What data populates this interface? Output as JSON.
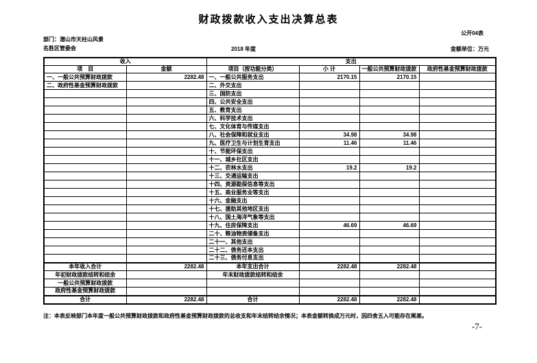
{
  "page": {
    "title": "财政拨款收入支出决算总表",
    "table_code": "公开04表",
    "department_line1": "部门：潜山市天柱山风景",
    "department_line2": "名胜区管委会",
    "year": "2018 年度",
    "unit": "金额单位：万元",
    "note": "注：本表反映部门本年度一般公共预算财政拨款和政府性基金预算财政拨款的总收支和年末结转结余情况；本表金额转换成万元时，因四舍五入可能存在尾差。",
    "page_number": "-7-"
  },
  "table": {
    "group_headers": {
      "income": "收入",
      "expense": "支出"
    },
    "columns": [
      "项　目",
      "金额",
      "项目（按功能分类）",
      "小 计",
      "一般公共预算财政拨款",
      "政府性基金预算财政拨款"
    ],
    "rows": [
      {
        "income_item": "一、一般公共预算财政拨款",
        "income_amount": "2282.48",
        "expense_item": "一、一般公共服务支出",
        "subtotal": "2170.15",
        "general": "2170.15",
        "fund": "",
        "style": ""
      },
      {
        "income_item": "二、政府性基金预算财政拨款",
        "income_amount": "",
        "expense_item": "二、外交支出",
        "subtotal": "",
        "general": "",
        "fund": "",
        "style": ""
      },
      {
        "income_item": "",
        "income_amount": "",
        "expense_item": "三、国防支出",
        "subtotal": "",
        "general": "",
        "fund": "",
        "style": ""
      },
      {
        "income_item": "",
        "income_amount": "",
        "expense_item": "四、公共安全支出",
        "subtotal": "",
        "general": "",
        "fund": "",
        "style": ""
      },
      {
        "income_item": "",
        "income_amount": "",
        "expense_item": "五、教育支出",
        "subtotal": "",
        "general": "",
        "fund": "",
        "style": ""
      },
      {
        "income_item": "",
        "income_amount": "",
        "expense_item": "六、科学技术支出",
        "subtotal": "",
        "general": "",
        "fund": "",
        "style": ""
      },
      {
        "income_item": "",
        "income_amount": "",
        "expense_item": "七、文化体育与传媒支出",
        "subtotal": "",
        "general": "",
        "fund": "",
        "style": ""
      },
      {
        "income_item": "",
        "income_amount": "",
        "expense_item": "八、社会保障和就业支出",
        "subtotal": "34.98",
        "general": "34.98",
        "fund": "",
        "style": ""
      },
      {
        "income_item": "",
        "income_amount": "",
        "expense_item": "九、医疗卫生与计划生育支出",
        "subtotal": "11.46",
        "general": "11.46",
        "fund": "",
        "style": ""
      },
      {
        "income_item": "",
        "income_amount": "",
        "expense_item": "十、节能环保支出",
        "subtotal": "",
        "general": "",
        "fund": "",
        "style": ""
      },
      {
        "income_item": "",
        "income_amount": "",
        "expense_item": "十一、城乡社区支出",
        "subtotal": "",
        "general": "",
        "fund": "",
        "style": ""
      },
      {
        "income_item": "",
        "income_amount": "",
        "expense_item": "十二、农林水支出",
        "subtotal": "19.2",
        "general": "19.2",
        "fund": "",
        "style": ""
      },
      {
        "income_item": "",
        "income_amount": "",
        "expense_item": "十三、交通运输支出",
        "subtotal": "",
        "general": "",
        "fund": "",
        "style": ""
      },
      {
        "income_item": "",
        "income_amount": "",
        "expense_item": "十四、资源勘探信息等支出",
        "subtotal": "",
        "general": "",
        "fund": "",
        "style": ""
      },
      {
        "income_item": "",
        "income_amount": "",
        "expense_item": "十五、商业服务业等支出",
        "subtotal": "",
        "general": "",
        "fund": "",
        "style": ""
      },
      {
        "income_item": "",
        "income_amount": "",
        "expense_item": "十六、金融支出",
        "subtotal": "",
        "general": "",
        "fund": "",
        "style": ""
      },
      {
        "income_item": "",
        "income_amount": "",
        "expense_item": "十七、援助其他地区支出",
        "subtotal": "",
        "general": "",
        "fund": "",
        "style": ""
      },
      {
        "income_item": "",
        "income_amount": "",
        "expense_item": "十八、国土海洋气象等支出",
        "subtotal": "",
        "general": "",
        "fund": "",
        "style": ""
      },
      {
        "income_item": "",
        "income_amount": "",
        "expense_item": "十九、住房保障支出",
        "subtotal": "46.69",
        "general": "46.69",
        "fund": "",
        "style": ""
      },
      {
        "income_item": "",
        "income_amount": "",
        "expense_item": "二十、粮油物资储备支出",
        "subtotal": "",
        "general": "",
        "fund": "",
        "style": ""
      },
      {
        "income_item": "",
        "income_amount": "",
        "expense_item": "二十一、其他支出",
        "subtotal": "",
        "general": "",
        "fund": "",
        "style": ""
      },
      {
        "income_item": "",
        "income_amount": "",
        "expense_item": "二十二、债务还本支出",
        "subtotal": "",
        "general": "",
        "fund": "",
        "style": ""
      },
      {
        "income_item": "",
        "income_amount": "",
        "expense_item": "二十三、债务付息支出",
        "subtotal": "",
        "general": "",
        "fund": "",
        "style": ""
      },
      {
        "income_item": "本年收入合计",
        "income_amount": "2282.48",
        "expense_item": "本年支出合计",
        "subtotal": "2282.48",
        "general": "2282.48",
        "fund": "",
        "style": "total"
      },
      {
        "income_item": "年初财政拨款结转和结余",
        "income_amount": "",
        "expense_item": "年末财政拨款结转和结余",
        "subtotal": "",
        "general": "",
        "fund": "",
        "style": "center"
      },
      {
        "income_item": "一般公共预算财政拨款",
        "income_amount": "",
        "expense_item": "",
        "subtotal": "",
        "general": "",
        "fund": "",
        "style": "center"
      },
      {
        "income_item": "政府性基金预算财政拨款",
        "income_amount": "",
        "expense_item": "",
        "subtotal": "",
        "general": "",
        "fund": "",
        "style": "center"
      },
      {
        "income_item": "合计",
        "income_amount": "2282.48",
        "expense_item": "合计",
        "subtotal": "2282.48",
        "general": "2282.48",
        "fund": "",
        "style": "total"
      }
    ]
  }
}
